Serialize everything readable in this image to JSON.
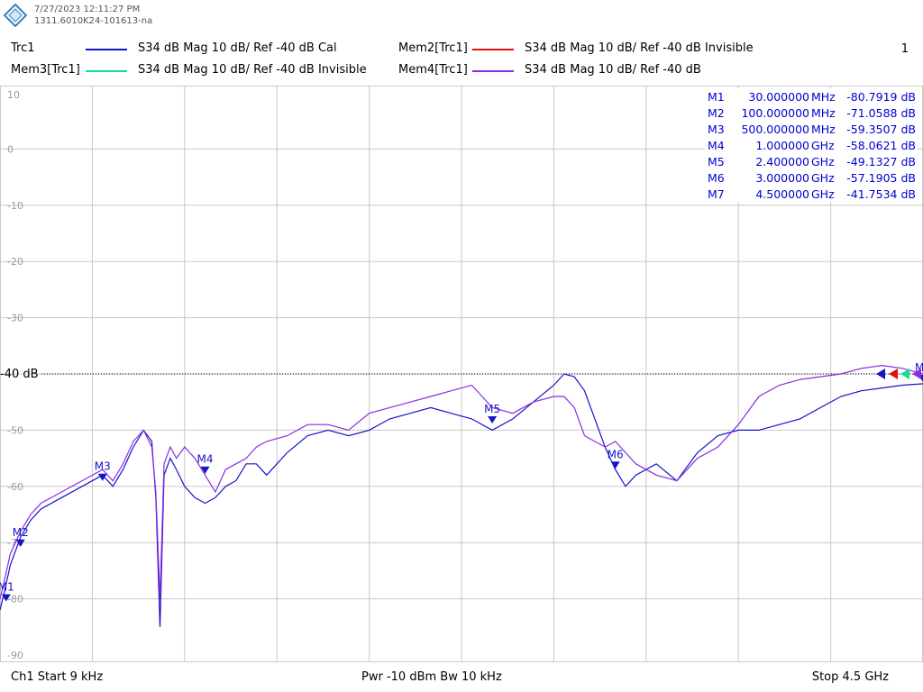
{
  "header": {
    "timestamp": "7/27/2023 12:11:27 PM",
    "device_id": "1311.6010K24-101613-na",
    "window_number": "1"
  },
  "traces": [
    {
      "label": "Trc1",
      "text": "S34  dB Mag  10 dB/ Ref -40 dB  Cal",
      "color": "#1414c8"
    },
    {
      "label": "Mem2[Trc1]",
      "text": "S34  dB Mag  10 dB/ Ref -40 dB  Invisible",
      "color": "#e01010"
    },
    {
      "label": "Mem3[Trc1]",
      "text": "S34  dB Mag  10 dB/ Ref -40 dB  Invisible",
      "color": "#10e090"
    },
    {
      "label": "Mem4[Trc1]",
      "text": "S34  dB Mag  10 dB/ Ref -40 dB",
      "color": "#8a2be2"
    }
  ],
  "diagram": {
    "y_ticks": [
      "10",
      "0",
      "-10",
      "-20",
      "-30",
      "-40 dB",
      "-50",
      "-60",
      "-70",
      "-80",
      "-90"
    ],
    "ref_label": "-40 dB",
    "x_start_hz": 9000,
    "x_stop_hz": 4500000000,
    "y_top_db": 10,
    "y_bottom_db": -90,
    "vertical_divisions": 10
  },
  "markers": [
    {
      "name": "M1",
      "freq": "30.000000",
      "unit": "MHz",
      "value": "-80.7919",
      "vunit": "dB",
      "x_hz": 30000000,
      "y_db": -80.7919
    },
    {
      "name": "M2",
      "freq": "100.000000",
      "unit": "MHz",
      "value": "-71.0588",
      "vunit": "dB",
      "x_hz": 100000000,
      "y_db": -71.0588
    },
    {
      "name": "M3",
      "freq": "500.000000",
      "unit": "MHz",
      "value": "-59.3507",
      "vunit": "dB",
      "x_hz": 500000000,
      "y_db": -59.3507
    },
    {
      "name": "M4",
      "freq": "1.000000",
      "unit": "GHz",
      "value": "-58.0621",
      "vunit": "dB",
      "x_hz": 1000000000,
      "y_db": -58.0621
    },
    {
      "name": "M5",
      "freq": "2.400000",
      "unit": "GHz",
      "value": "-49.1327",
      "vunit": "dB",
      "x_hz": 2400000000,
      "y_db": -49.1327
    },
    {
      "name": "M6",
      "freq": "3.000000",
      "unit": "GHz",
      "value": "-57.1905",
      "vunit": "dB",
      "x_hz": 3000000000,
      "y_db": -57.1905
    },
    {
      "name": "M7",
      "freq": "4.500000",
      "unit": "GHz",
      "value": "-41.7534",
      "vunit": "dB",
      "x_hz": 4500000000,
      "y_db": -41.7534
    }
  ],
  "footer": {
    "channel_start": "Ch1  Start  9 kHz",
    "power_bw": "Pwr  -10 dBm  Bw  10 kHz",
    "stop": "Stop  4.5 GHz"
  },
  "chart_data": {
    "type": "line",
    "xlim": [
      9e-06,
      4.5
    ],
    "ylim": [
      -90,
      10
    ],
    "grid": true,
    "series": [
      {
        "name": "Trc1",
        "color": "#1414c8",
        "x": [
          9e-06,
          0.02,
          0.05,
          0.1,
          0.15,
          0.2,
          0.3,
          0.4,
          0.5,
          0.55,
          0.6,
          0.65,
          0.7,
          0.74,
          0.76,
          0.78,
          0.8,
          0.83,
          0.86,
          0.9,
          0.95,
          1.0,
          1.05,
          1.1,
          1.15,
          1.2,
          1.25,
          1.3,
          1.4,
          1.5,
          1.6,
          1.7,
          1.8,
          1.9,
          2.0,
          2.1,
          2.2,
          2.3,
          2.4,
          2.5,
          2.6,
          2.7,
          2.75,
          2.8,
          2.85,
          2.9,
          2.95,
          3.0,
          3.05,
          3.1,
          3.2,
          3.3,
          3.4,
          3.5,
          3.6,
          3.7,
          3.8,
          3.9,
          4.0,
          4.1,
          4.2,
          4.3,
          4.4,
          4.5
        ],
        "y": [
          -82,
          -79,
          -74,
          -69,
          -66,
          -64,
          -62,
          -60,
          -58,
          -60,
          -57,
          -53,
          -50,
          -52,
          -62,
          -85,
          -58,
          -55,
          -57,
          -60,
          -62,
          -63,
          -62,
          -60,
          -59,
          -56,
          -56,
          -58,
          -54,
          -51,
          -50,
          -51,
          -50,
          -48,
          -47,
          -46,
          -47,
          -48,
          -50,
          -48,
          -45,
          -42,
          -40,
          -40.5,
          -43,
          -48,
          -53,
          -57,
          -60,
          -58,
          -56,
          -59,
          -54,
          -51,
          -50,
          -50,
          -49,
          -48,
          -46,
          -44,
          -43,
          -42.5,
          -42,
          -41.75
        ]
      },
      {
        "name": "Mem4[Trc1]",
        "color": "#8a2be2",
        "x": [
          9e-06,
          0.02,
          0.05,
          0.1,
          0.15,
          0.2,
          0.3,
          0.4,
          0.5,
          0.55,
          0.6,
          0.65,
          0.7,
          0.74,
          0.76,
          0.78,
          0.8,
          0.83,
          0.86,
          0.9,
          0.95,
          1.0,
          1.05,
          1.1,
          1.15,
          1.2,
          1.25,
          1.3,
          1.4,
          1.5,
          1.6,
          1.7,
          1.8,
          1.9,
          2.0,
          2.1,
          2.2,
          2.3,
          2.4,
          2.5,
          2.6,
          2.7,
          2.75,
          2.8,
          2.85,
          2.9,
          2.95,
          3.0,
          3.05,
          3.1,
          3.2,
          3.3,
          3.4,
          3.5,
          3.6,
          3.7,
          3.8,
          3.9,
          4.0,
          4.1,
          4.2,
          4.3,
          4.4,
          4.5
        ],
        "y": [
          -80,
          -77,
          -72,
          -68,
          -65,
          -63,
          -61,
          -59,
          -57,
          -59,
          -56,
          -52,
          -50,
          -53,
          -61,
          -80,
          -56,
          -53,
          -55,
          -53,
          -55,
          -58,
          -61,
          -57,
          -56,
          -55,
          -53,
          -52,
          -51,
          -49,
          -49,
          -50,
          -47,
          -46,
          -45,
          -44,
          -43,
          -42,
          -46,
          -47,
          -45,
          -44,
          -44,
          -46,
          -51,
          -52,
          -53,
          -52,
          -54,
          -56,
          -58,
          -59,
          -55,
          -53,
          -49,
          -44,
          -42,
          -41,
          -40.5,
          -40,
          -39,
          -38.5,
          -39,
          -40
        ]
      }
    ]
  }
}
